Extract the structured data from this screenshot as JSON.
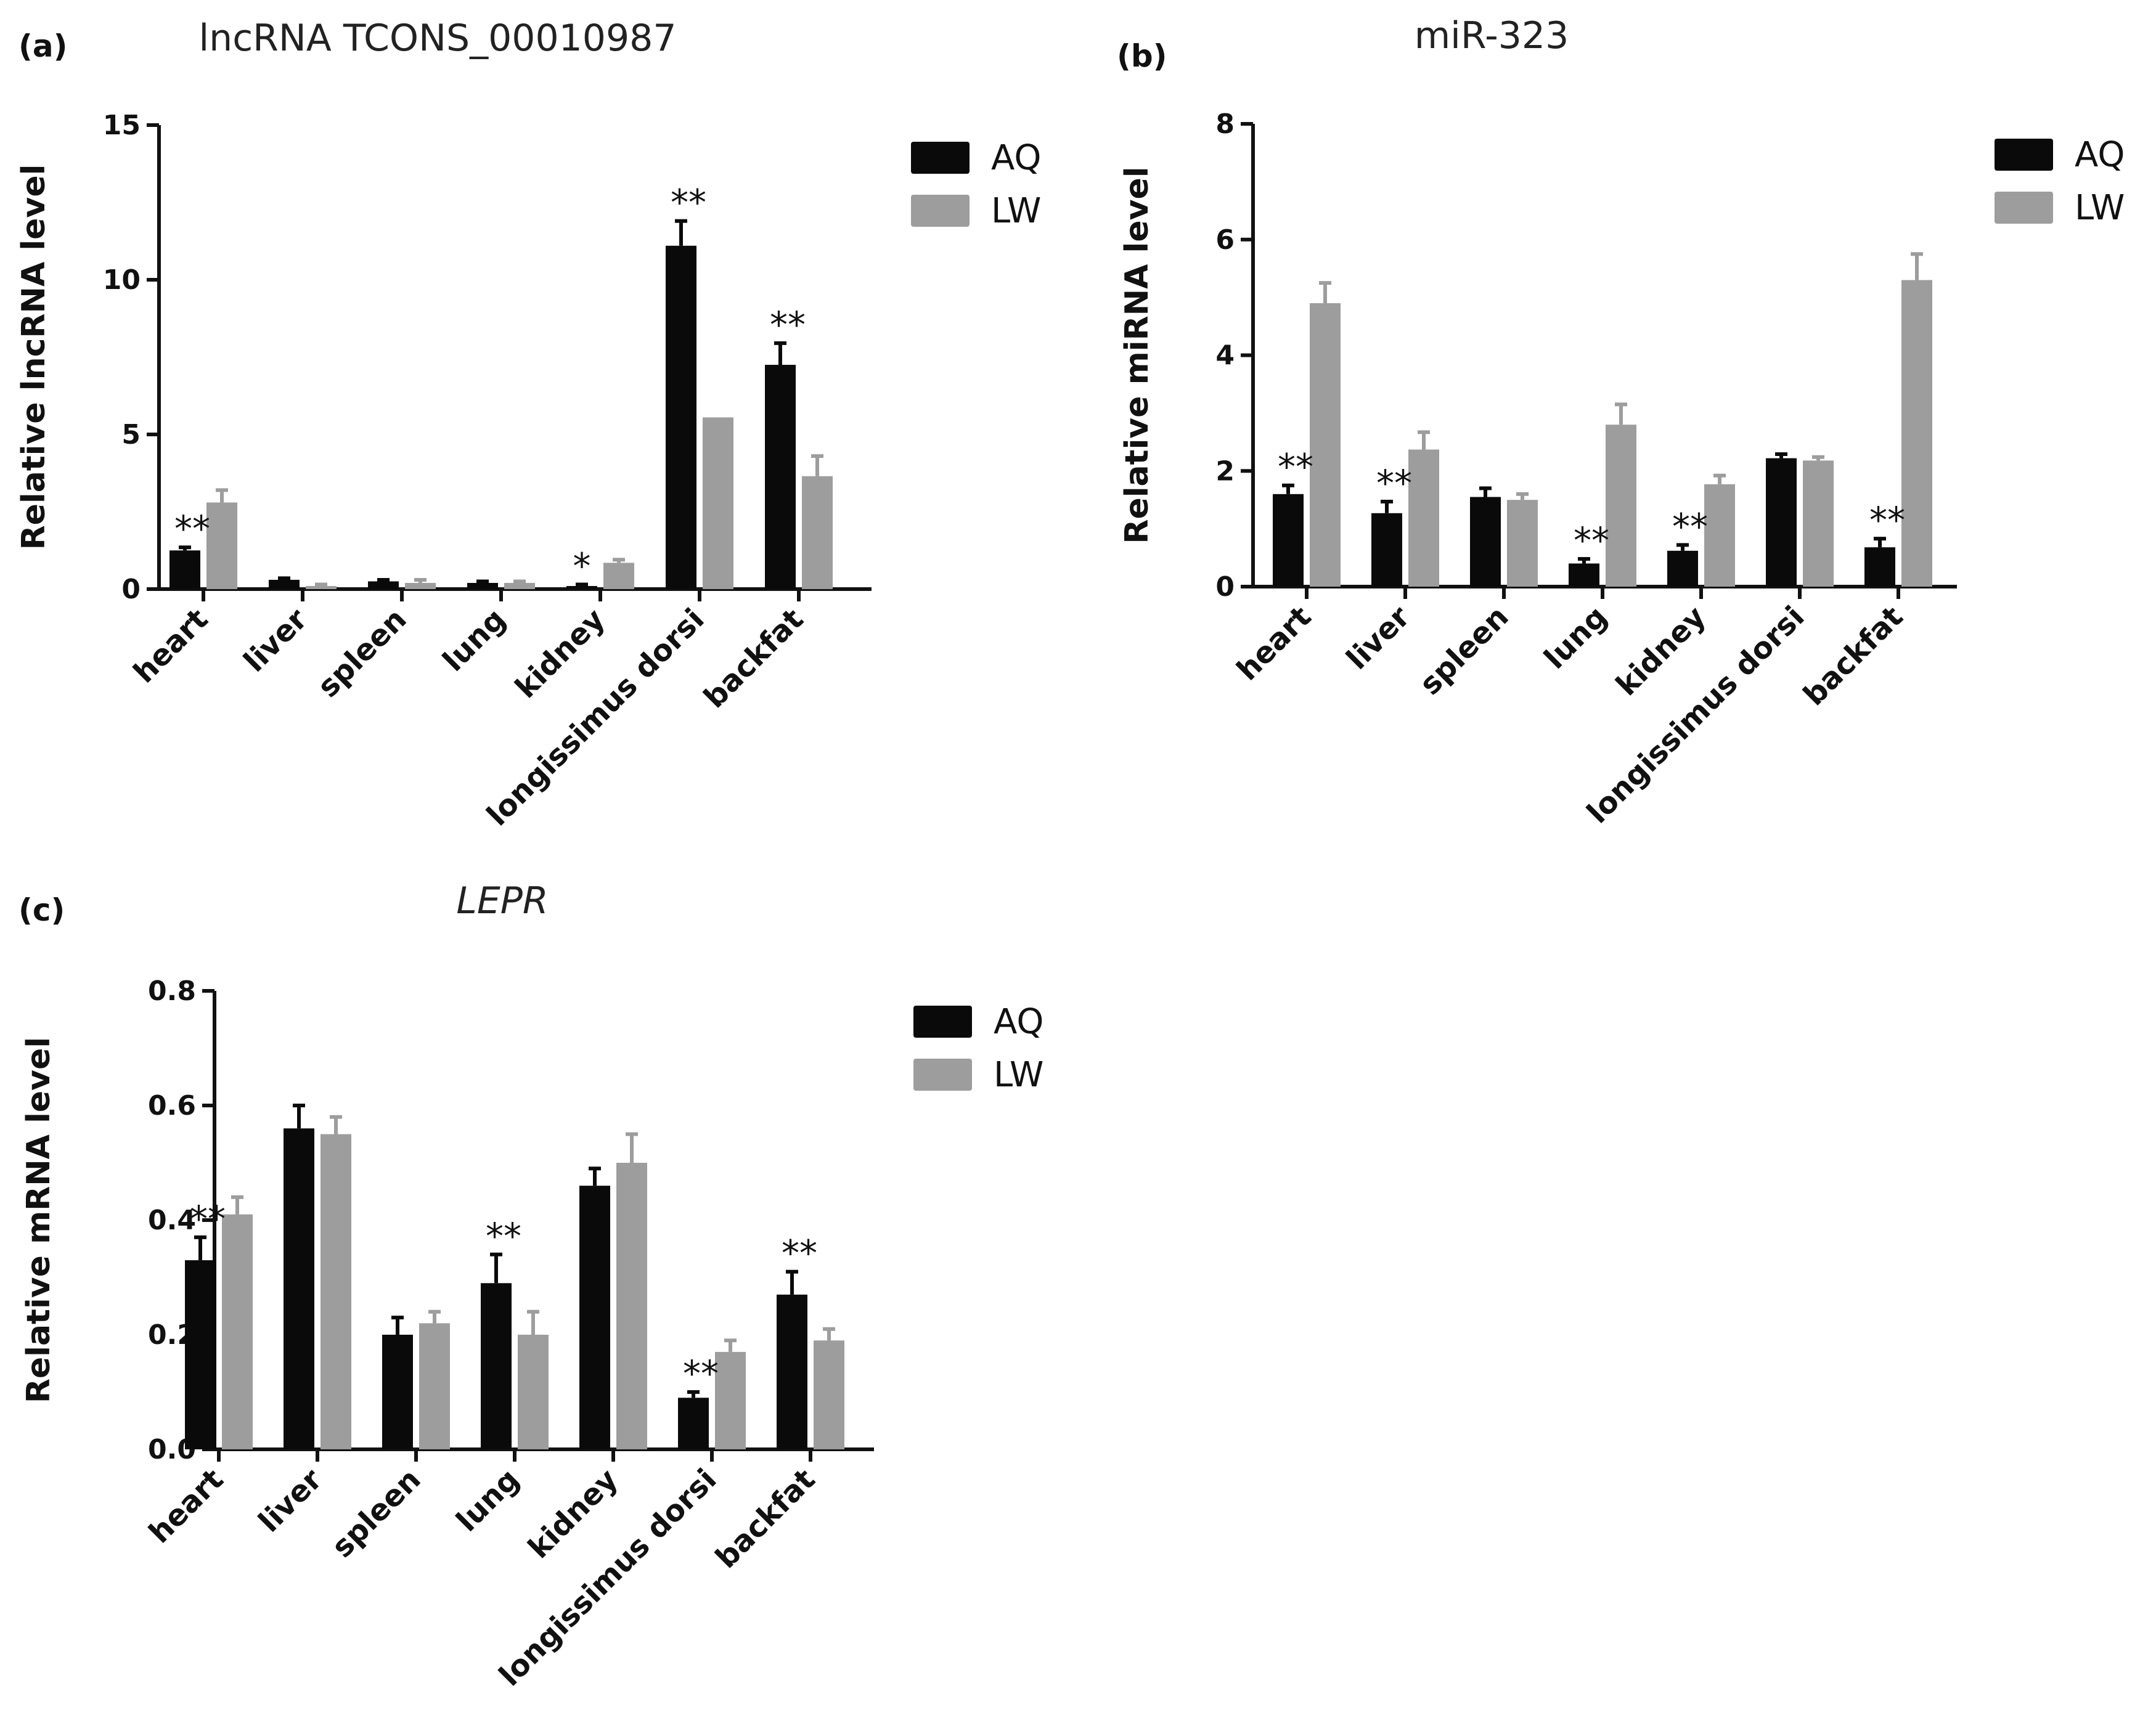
{
  "colors": {
    "AQ": "#0a0a0a",
    "LW": "#9d9d9d"
  },
  "chart_data": [
    {
      "panel": "(a)",
      "type": "bar",
      "title": "lncRNA TCONS_00010987",
      "title_italic": false,
      "xlabel": "",
      "ylabel": "Relative lncRNA level",
      "ylim": [
        0,
        15
      ],
      "yticks": [
        "0",
        "5",
        "10",
        "15"
      ],
      "categories": [
        "heart",
        "liver",
        "spleen",
        "lung",
        "kidney",
        "longissimus dorsi",
        "backfat"
      ],
      "series": [
        {
          "name": "AQ",
          "values": [
            1.25,
            0.3,
            0.25,
            0.2,
            0.1,
            11.1,
            7.25
          ],
          "errors": [
            0.1,
            0.05,
            0.05,
            0.05,
            0.05,
            0.8,
            0.7
          ]
        },
        {
          "name": "LW",
          "values": [
            2.8,
            0.1,
            0.2,
            0.2,
            0.85,
            5.55,
            3.65
          ],
          "errors": [
            0.4,
            0.05,
            0.1,
            0.05,
            0.1,
            0.0,
            0.65
          ]
        }
      ],
      "significance": [
        "**",
        "",
        "",
        "",
        "*",
        "**",
        "**"
      ],
      "legend": "top-right",
      "grid": false
    },
    {
      "panel": "(b)",
      "type": "bar",
      "title": "miR-323",
      "title_italic": false,
      "xlabel": "",
      "ylabel": "Relative miRNA level",
      "ylim": [
        0,
        8
      ],
      "yticks": [
        "0",
        "2",
        "4",
        "6",
        "8"
      ],
      "categories": [
        "heart",
        "liver",
        "spleen",
        "lung",
        "kidney",
        "longissimus dorsi",
        "backfat"
      ],
      "series": [
        {
          "name": "AQ",
          "values": [
            1.6,
            1.27,
            1.55,
            0.4,
            0.62,
            2.22,
            0.68
          ],
          "errors": [
            0.15,
            0.2,
            0.15,
            0.08,
            0.1,
            0.07,
            0.15
          ]
        },
        {
          "name": "LW",
          "values": [
            4.9,
            2.37,
            1.5,
            2.8,
            1.77,
            2.18,
            5.3
          ],
          "errors": [
            0.35,
            0.3,
            0.1,
            0.35,
            0.15,
            0.06,
            0.45
          ]
        }
      ],
      "significance": [
        "**",
        "**",
        "",
        "**",
        "**",
        "",
        "**"
      ],
      "legend": "top-right",
      "grid": false
    },
    {
      "panel": "(c)",
      "type": "bar",
      "title": "LEPR",
      "title_italic": true,
      "xlabel": "",
      "ylabel": "Relative mRNA level",
      "ylim": [
        0,
        0.8
      ],
      "yticks": [
        "0.0",
        "0.2",
        "0.4",
        "0.6",
        "0.8"
      ],
      "categories": [
        "heart",
        "liver",
        "spleen",
        "lung",
        "kidney",
        "longissimus dorsi",
        "backfat"
      ],
      "series": [
        {
          "name": "AQ",
          "values": [
            0.33,
            0.56,
            0.2,
            0.29,
            0.46,
            0.09,
            0.27
          ],
          "errors": [
            0.04,
            0.04,
            0.03,
            0.05,
            0.03,
            0.01,
            0.04
          ]
        },
        {
          "name": "LW",
          "values": [
            0.41,
            0.55,
            0.22,
            0.2,
            0.5,
            0.17,
            0.19
          ],
          "errors": [
            0.03,
            0.03,
            0.02,
            0.04,
            0.05,
            0.02,
            0.02
          ]
        }
      ],
      "significance": [
        "**",
        "",
        "",
        "**",
        "",
        "**",
        "**"
      ],
      "legend": "top-right",
      "grid": false
    }
  ]
}
